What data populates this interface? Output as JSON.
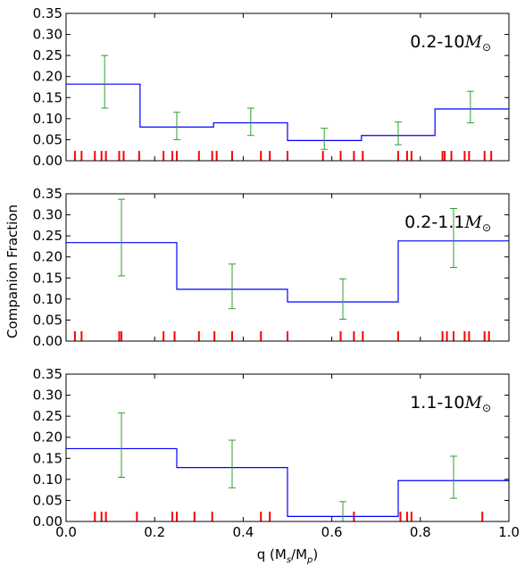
{
  "figure": {
    "ylabel": "Companion Fraction",
    "xlabel": "q (M",
    "xlabel_sub_s": "s",
    "xlabel_mid": "/M",
    "xlabel_sub_p": "p",
    "xlabel_close": ")"
  },
  "colors": {
    "histogram": "#0000ff",
    "errorbar": "#2ca02c",
    "rug": "#ff0000",
    "frame": "#000000"
  },
  "chart_data": [
    {
      "type": "line",
      "label_prefix": "0.2-10",
      "label_symbol": "M",
      "label_symbol_suffix": "⊙",
      "xlim": [
        0.0,
        1.0
      ],
      "ylim": [
        0.0,
        0.35
      ],
      "xticks": [
        "0.0",
        "0.2",
        "0.4",
        "0.6",
        "0.8",
        "1.0"
      ],
      "yticks": [
        "0.00",
        "0.05",
        "0.10",
        "0.15",
        "0.20",
        "0.25",
        "0.30",
        "0.35"
      ],
      "show_xtick_labels": false,
      "bin_edges": [
        0.0,
        0.167,
        0.333,
        0.5,
        0.667,
        0.833,
        1.0
      ],
      "values": [
        0.182,
        0.08,
        0.09,
        0.048,
        0.06,
        0.123
      ],
      "errorbars": [
        {
          "x": 0.087,
          "y": 0.187,
          "lo": 0.125,
          "hi": 0.25
        },
        {
          "x": 0.25,
          "y": 0.083,
          "lo": 0.05,
          "hi": 0.115
        },
        {
          "x": 0.417,
          "y": 0.092,
          "lo": 0.06,
          "hi": 0.125
        },
        {
          "x": 0.583,
          "y": 0.05,
          "lo": 0.027,
          "hi": 0.077
        },
        {
          "x": 0.75,
          "y": 0.064,
          "lo": 0.038,
          "hi": 0.092
        },
        {
          "x": 0.913,
          "y": 0.127,
          "lo": 0.09,
          "hi": 0.165
        }
      ],
      "rug": [
        0.02,
        0.035,
        0.065,
        0.08,
        0.09,
        0.12,
        0.13,
        0.165,
        0.22,
        0.24,
        0.25,
        0.3,
        0.33,
        0.34,
        0.375,
        0.44,
        0.46,
        0.5,
        0.58,
        0.62,
        0.65,
        0.67,
        0.75,
        0.77,
        0.78,
        0.85,
        0.855,
        0.87,
        0.9,
        0.91,
        0.945,
        0.96
      ]
    },
    {
      "type": "line",
      "label_prefix": "0.2-1.1",
      "label_symbol": "M",
      "label_symbol_suffix": "⊙",
      "xlim": [
        0.0,
        1.0
      ],
      "ylim": [
        0.0,
        0.35
      ],
      "xticks": [
        "0.0",
        "0.2",
        "0.4",
        "0.6",
        "0.8",
        "1.0"
      ],
      "yticks": [
        "0.00",
        "0.05",
        "0.10",
        "0.15",
        "0.20",
        "0.25",
        "0.30",
        "0.35"
      ],
      "show_xtick_labels": false,
      "bin_edges": [
        0.0,
        0.25,
        0.5,
        0.75,
        1.0
      ],
      "values": [
        0.234,
        0.123,
        0.093,
        0.238
      ],
      "errorbars": [
        {
          "x": 0.125,
          "y": 0.246,
          "lo": 0.155,
          "hi": 0.337
        },
        {
          "x": 0.375,
          "y": 0.13,
          "lo": 0.077,
          "hi": 0.183
        },
        {
          "x": 0.625,
          "y": 0.1,
          "lo": 0.052,
          "hi": 0.148
        },
        {
          "x": 0.875,
          "y": 0.245,
          "lo": 0.175,
          "hi": 0.315
        }
      ],
      "rug": [
        0.02,
        0.035,
        0.12,
        0.125,
        0.22,
        0.245,
        0.3,
        0.335,
        0.375,
        0.44,
        0.5,
        0.62,
        0.65,
        0.67,
        0.75,
        0.85,
        0.86,
        0.875,
        0.9,
        0.91,
        0.945,
        0.955
      ]
    },
    {
      "type": "line",
      "label_prefix": "1.1-10",
      "label_symbol": "M",
      "label_symbol_suffix": "⊙",
      "xlim": [
        0.0,
        1.0
      ],
      "ylim": [
        0.0,
        0.35
      ],
      "xticks": [
        "0.0",
        "0.2",
        "0.4",
        "0.6",
        "0.8",
        "1.0"
      ],
      "yticks": [
        "0.00",
        "0.05",
        "0.10",
        "0.15",
        "0.20",
        "0.25",
        "0.30",
        "0.35"
      ],
      "show_xtick_labels": true,
      "bin_edges": [
        0.0,
        0.25,
        0.5,
        0.75,
        1.0
      ],
      "values": [
        0.173,
        0.128,
        0.012,
        0.097
      ],
      "errorbars": [
        {
          "x": 0.125,
          "y": 0.183,
          "lo": 0.105,
          "hi": 0.258
        },
        {
          "x": 0.375,
          "y": 0.135,
          "lo": 0.08,
          "hi": 0.193
        },
        {
          "x": 0.625,
          "y": 0.014,
          "lo": 0.0,
          "hi": 0.047
        },
        {
          "x": 0.875,
          "y": 0.103,
          "lo": 0.055,
          "hi": 0.155
        }
      ],
      "rug": [
        0.065,
        0.08,
        0.09,
        0.16,
        0.24,
        0.25,
        0.29,
        0.33,
        0.44,
        0.46,
        0.65,
        0.755,
        0.77,
        0.78,
        0.94
      ]
    }
  ]
}
